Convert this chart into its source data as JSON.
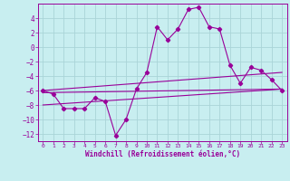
{
  "xlabel": "Windchill (Refroidissement éolien,°C)",
  "background_color": "#c8eef0",
  "grid_color": "#aad4d8",
  "line_color": "#990099",
  "xlim": [
    -0.5,
    23.5
  ],
  "ylim": [
    -13,
    6
  ],
  "yticks": [
    -12,
    -10,
    -8,
    -6,
    -4,
    -2,
    0,
    2,
    4
  ],
  "xticks": [
    0,
    1,
    2,
    3,
    4,
    5,
    6,
    7,
    8,
    9,
    10,
    11,
    12,
    13,
    14,
    15,
    16,
    17,
    18,
    19,
    20,
    21,
    22,
    23
  ],
  "series1_x": [
    0,
    1,
    2,
    3,
    4,
    5,
    6,
    7,
    8,
    9,
    10,
    11,
    12,
    13,
    14,
    15,
    16,
    17,
    18,
    19,
    20,
    21,
    22,
    23
  ],
  "series1_y": [
    -6.0,
    -6.5,
    -8.5,
    -8.5,
    -8.5,
    -7.0,
    -7.5,
    -12.2,
    -10.0,
    -5.8,
    -3.5,
    2.8,
    1.0,
    2.5,
    5.2,
    5.5,
    2.8,
    2.5,
    -2.5,
    -5.0,
    -2.8,
    -3.2,
    -4.5,
    -6.0
  ],
  "series2_x": [
    0,
    23
  ],
  "series2_y": [
    -6.0,
    -3.5
  ],
  "series3_x": [
    0,
    23
  ],
  "series3_y": [
    -6.3,
    -5.8
  ],
  "series4_x": [
    0,
    23
  ],
  "series4_y": [
    -8.0,
    -5.8
  ]
}
